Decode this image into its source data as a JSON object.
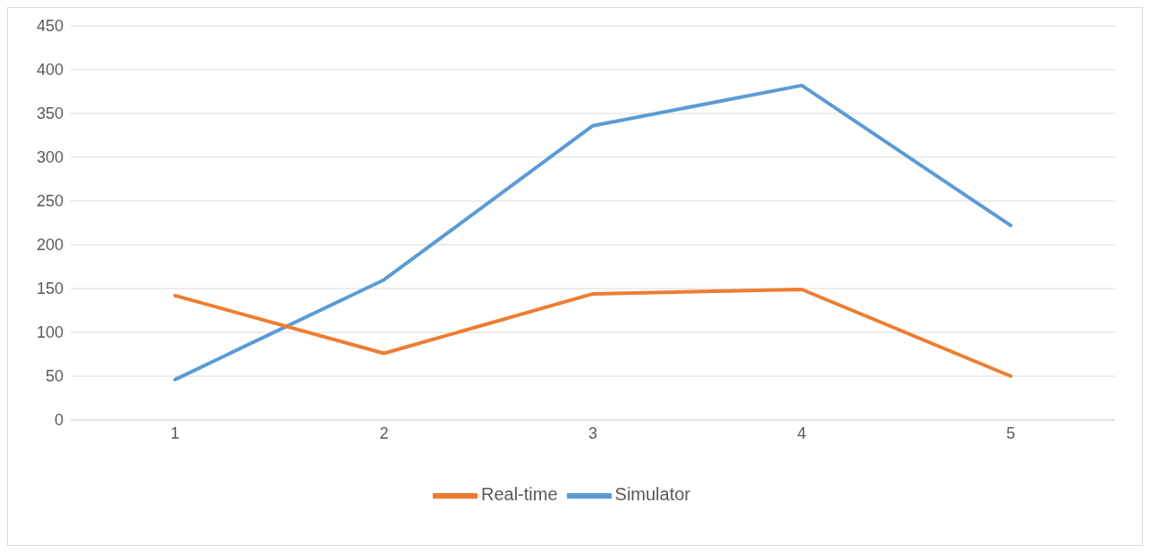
{
  "chart_data": {
    "type": "line",
    "categories": [
      "1",
      "2",
      "3",
      "4",
      "5"
    ],
    "series": [
      {
        "name": "Simulator",
        "color": "#5b9bd5",
        "values": [
          46,
          160,
          336,
          382,
          222
        ]
      },
      {
        "name": "Real-time",
        "color": "#ed7d31",
        "values": [
          142,
          76,
          144,
          149,
          50
        ]
      }
    ],
    "ylim": [
      0,
      450
    ],
    "yticks": [
      0,
      50,
      100,
      150,
      200,
      250,
      300,
      350,
      400,
      450
    ],
    "grid": "y",
    "legend": "bottom",
    "marker": "none",
    "line_style": "solid"
  }
}
